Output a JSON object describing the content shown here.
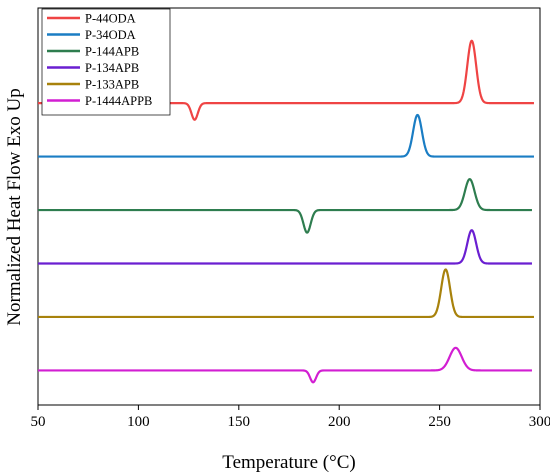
{
  "chart_data": {
    "type": "line",
    "xlabel": "Temperature (°C)",
    "ylabel": "Normalized Heat Flow Exo Up",
    "xlim": [
      50,
      300
    ],
    "xticks": [
      "50",
      "100",
      "150",
      "200",
      "250",
      "300"
    ],
    "legend_position": "top-left",
    "y_ticks_shown": false,
    "series": [
      {
        "name": "P-44ODA",
        "color": "#ef4444",
        "x_start": 50,
        "x_end": 297,
        "baseline": 5.2,
        "features": [
          {
            "center": 128,
            "height": -0.28,
            "width": 1.6
          },
          {
            "center": 266,
            "height": 1.05,
            "width": 2.2
          }
        ]
      },
      {
        "name": "P-34ODA",
        "color": "#1a7dc4",
        "x_start": 50,
        "x_end": 297,
        "baseline": 4.3,
        "features": [
          {
            "center": 239,
            "height": 0.7,
            "width": 2.2
          }
        ]
      },
      {
        "name": "P-144APB",
        "color": "#2e7d4f",
        "x_start": 50,
        "x_end": 296,
        "baseline": 3.4,
        "features": [
          {
            "center": 184,
            "height": -0.38,
            "width": 1.8
          },
          {
            "center": 265,
            "height": 0.52,
            "width": 2.4
          }
        ]
      },
      {
        "name": "P-134APB",
        "color": "#6a1fd1",
        "x_start": 50,
        "x_end": 296,
        "baseline": 2.5,
        "features": [
          {
            "center": 266,
            "height": 0.56,
            "width": 2.2
          }
        ]
      },
      {
        "name": "P-133APB",
        "color": "#a8820c",
        "x_start": 50,
        "x_end": 297,
        "baseline": 1.6,
        "features": [
          {
            "center": 253,
            "height": 0.8,
            "width": 2.2
          }
        ]
      },
      {
        "name": "P-1444APPB",
        "color": "#d21ed2",
        "x_start": 50,
        "x_end": 296,
        "baseline": 0.7,
        "features": [
          {
            "center": 187,
            "height": -0.2,
            "width": 1.5
          },
          {
            "center": 258,
            "height": 0.38,
            "width": 3.0
          }
        ]
      }
    ]
  }
}
